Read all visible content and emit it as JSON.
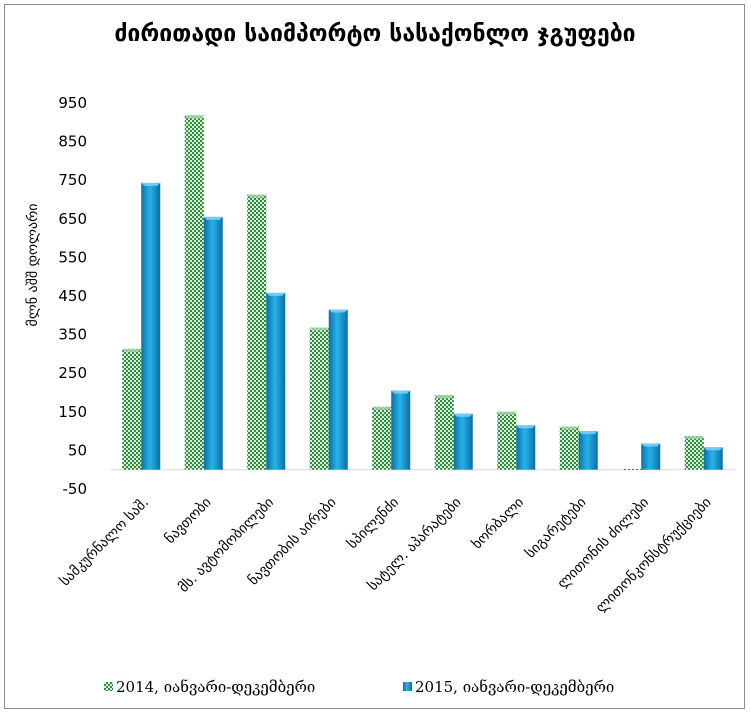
{
  "chart_data": {
    "type": "bar",
    "title": "ძირითადი საიმპორტო სასაქონლო ჯგუფები",
    "ylabel": "მლნ აშშ დოლარი",
    "xlabel": "",
    "ylim": [
      -50,
      950
    ],
    "yticks": [
      -50,
      50,
      150,
      250,
      350,
      450,
      550,
      650,
      750,
      850,
      950
    ],
    "grid": false,
    "legend_position": "bottom",
    "categories": [
      "სამკურნალო საშ.",
      "ნავთობი",
      "მს. ავტომობილები",
      "ნავთობის აირები",
      "სპილენძი",
      "სატელ. აპარატები",
      "ხორბალი",
      "სიგარეტები",
      "ლითონის ძილები",
      "ლითონკონსტრუქციები"
    ],
    "series": [
      {
        "name": "2014, იანვარი-დეკემბერი",
        "color": "#3a9a4a",
        "values": [
          313,
          918,
          713,
          368,
          163,
          193,
          150,
          112,
          2,
          87
        ]
      },
      {
        "name": "2015, იანვარი-დეკემბერი",
        "color": "#1e9fd8",
        "values": [
          743,
          655,
          458,
          415,
          205,
          145,
          115,
          100,
          68,
          58
        ]
      }
    ]
  }
}
